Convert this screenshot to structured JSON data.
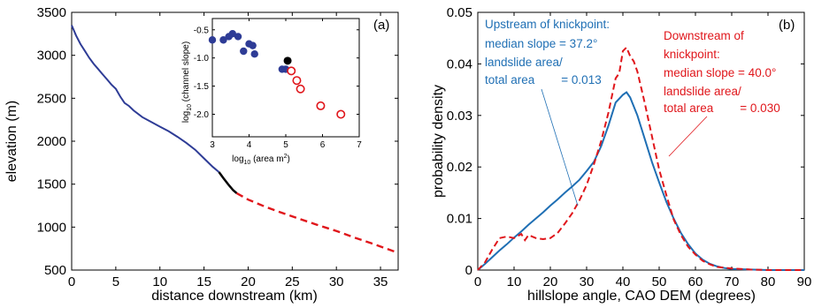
{
  "chart_data": [
    {
      "type": "line",
      "panel_label": "(a)",
      "xlabel": "distance downstream (km)",
      "ylabel": "elevation (m)",
      "xlim": [
        0,
        37
      ],
      "ylim": [
        500,
        3500
      ],
      "xticks": [
        0,
        5,
        10,
        15,
        20,
        25,
        30,
        35
      ],
      "yticks": [
        500,
        1000,
        1500,
        2000,
        2500,
        3000,
        3500
      ],
      "colors": {
        "upstream": "#2e3c96",
        "knickpoint": "#000000",
        "downstream": "#e0161b"
      },
      "series": [
        {
          "segment": "upstream",
          "x": [
            0,
            0.5,
            1,
            1.5,
            2,
            2.5,
            3,
            3.5,
            4,
            4.5,
            5,
            5.5,
            6,
            6.5,
            7,
            8,
            9,
            10,
            11,
            12,
            13,
            14,
            15,
            16,
            16.7
          ],
          "y": [
            3350,
            3230,
            3130,
            3050,
            2970,
            2900,
            2840,
            2780,
            2720,
            2660,
            2610,
            2520,
            2445,
            2410,
            2360,
            2280,
            2225,
            2170,
            2115,
            2050,
            1980,
            1900,
            1800,
            1700,
            1640
          ]
        },
        {
          "segment": "knickpoint",
          "x": [
            16.7,
            17.2,
            17.8,
            18.3,
            18.7
          ],
          "y": [
            1640,
            1570,
            1490,
            1430,
            1395
          ]
        },
        {
          "segment": "downstream",
          "x": [
            18.7,
            20,
            22,
            24,
            26,
            28,
            30,
            32,
            34,
            37
          ],
          "y": [
            1395,
            1320,
            1235,
            1160,
            1090,
            1020,
            955,
            880,
            810,
            700
          ]
        }
      ],
      "inset": {
        "xlabel": "log10 (area m2)",
        "ylabel": "log10 (channel slope)",
        "xlim": [
          3,
          7
        ],
        "ylim": [
          -2.4,
          -0.3
        ],
        "xticks": [
          3,
          4,
          5,
          6,
          7
        ],
        "yticks": [
          -0.5,
          -1.0,
          -1.5,
          -2.0
        ],
        "points_upstream": {
          "x": [
            3.0,
            3.3,
            3.45,
            3.55,
            3.7,
            3.85,
            4.0,
            4.1,
            4.15,
            4.9,
            5.0
          ],
          "y": [
            -0.68,
            -0.68,
            -0.62,
            -0.57,
            -0.62,
            -0.88,
            -0.75,
            -0.78,
            -0.93,
            -1.2,
            -1.2
          ]
        },
        "points_knickpoint": {
          "x": [
            5.05
          ],
          "y": [
            -1.05
          ]
        },
        "points_downstream": {
          "x": [
            5.15,
            5.3,
            5.4,
            5.95,
            6.5
          ],
          "y": [
            -1.23,
            -1.4,
            -1.55,
            -1.85,
            -2.0
          ]
        }
      }
    },
    {
      "type": "line",
      "panel_label": "(b)",
      "xlabel": "hillslope angle, CAO DEM (degrees)",
      "ylabel": "probability density",
      "xlim": [
        0,
        90
      ],
      "ylim": [
        0,
        0.05
      ],
      "xticks": [
        0,
        10,
        20,
        30,
        40,
        50,
        60,
        70,
        80,
        90
      ],
      "yticks": [
        0,
        0.01,
        0.02,
        0.03,
        0.04,
        0.05
      ],
      "ytick_labels": [
        "0",
        "0.01",
        "0.02",
        "0.03",
        "0.04",
        "0.05"
      ],
      "series": [
        {
          "name": "Upstream of knickpoint",
          "color": "#1f6fb4",
          "style": "solid",
          "x": [
            0,
            2,
            4,
            6,
            8,
            10,
            12,
            14,
            16,
            18,
            20,
            22,
            24,
            26,
            28,
            30,
            32,
            34,
            36,
            38,
            40,
            41,
            42,
            44,
            46,
            48,
            50,
            52,
            54,
            56,
            58,
            60,
            62,
            64,
            66,
            68,
            70,
            75,
            80,
            90
          ],
          "y": [
            0,
            0.0012,
            0.0025,
            0.0038,
            0.005,
            0.0063,
            0.0075,
            0.0088,
            0.01,
            0.0112,
            0.0125,
            0.0137,
            0.015,
            0.0162,
            0.0175,
            0.0192,
            0.021,
            0.024,
            0.028,
            0.0325,
            0.034,
            0.0345,
            0.0335,
            0.03,
            0.0255,
            0.021,
            0.017,
            0.0132,
            0.01,
            0.0072,
            0.005,
            0.0032,
            0.002,
            0.0012,
            0.0007,
            0.0004,
            0.0002,
            0.0001,
            0,
            0
          ]
        },
        {
          "name": "Downstream of knickpoint",
          "color": "#e0161b",
          "style": "dashed",
          "x": [
            0,
            2,
            4,
            6,
            8,
            10,
            12,
            13,
            14,
            16,
            18,
            20,
            22,
            24,
            26,
            28,
            30,
            32,
            34,
            36,
            38,
            39,
            40,
            41,
            42,
            43,
            44,
            46,
            48,
            50,
            52,
            54,
            56,
            58,
            60,
            62,
            64,
            66,
            70,
            75,
            80,
            90
          ],
          "y": [
            0,
            0.0015,
            0.004,
            0.0062,
            0.0065,
            0.0062,
            0.007,
            0.0058,
            0.0068,
            0.0062,
            0.006,
            0.0062,
            0.0072,
            0.009,
            0.011,
            0.0135,
            0.0165,
            0.0205,
            0.025,
            0.0305,
            0.0372,
            0.0382,
            0.0425,
            0.0432,
            0.0415,
            0.0405,
            0.0385,
            0.0325,
            0.026,
            0.0195,
            0.0145,
            0.0098,
            0.0068,
            0.0045,
            0.003,
            0.0018,
            0.0011,
            0.0006,
            0.0003,
            0.0001,
            0,
            0
          ]
        }
      ],
      "annotations": {
        "upstream": [
          "Upstream of knickpoint:",
          "median slope = 37.2°",
          "landslide area/",
          "total area        = 0.013"
        ],
        "downstream": [
          "Downstream of",
          "knickpoint:",
          "median slope = 40.0°",
          "landslide area/",
          "total area        = 0.030"
        ]
      }
    }
  ]
}
